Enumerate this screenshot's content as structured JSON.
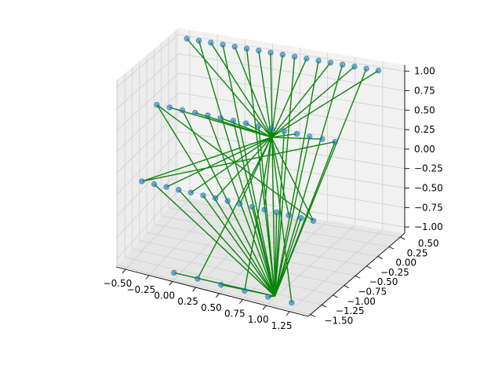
{
  "chart_data": {
    "type": "scatter3d",
    "title": "",
    "xlabel": "",
    "ylabel": "",
    "zlabel": "",
    "xlim": [
      -0.6,
      1.45
    ],
    "ylim": [
      -1.55,
      0.6
    ],
    "zlim": [
      -1.08,
      1.08
    ],
    "grid": true,
    "x_ticks": [
      "−0.50",
      "−0.25",
      "0.00",
      "0.25",
      "0.50",
      "0.75",
      "1.00",
      "1.25"
    ],
    "y_ticks": [
      "−1.50",
      "−1.25",
      "−1.00",
      "−0.75",
      "−0.50",
      "−0.25",
      "0.00",
      "0.25",
      "0.50"
    ],
    "z_ticks": [
      "−1.00",
      "−0.75",
      "−0.50",
      "−0.25",
      "0.00",
      "0.25",
      "0.50",
      "0.75",
      "1.00"
    ],
    "x_tick_values": [
      -0.5,
      -0.25,
      0,
      0.25,
      0.5,
      0.75,
      1.0,
      1.25
    ],
    "y_tick_values": [
      -1.5,
      -1.25,
      -1.0,
      -0.75,
      -0.5,
      -0.25,
      0,
      0.25,
      0.5
    ],
    "z_tick_values": [
      -1.0,
      -0.75,
      -0.5,
      -0.25,
      0,
      0.25,
      0.5,
      0.75,
      1.0
    ],
    "series": [
      {
        "marker": "circle",
        "color": "#1f77b4",
        "points_description": "rows of points across the plot range",
        "rows": [
          {
            "x_start": -0.5,
            "x_end": 1.25,
            "y": 0.5,
            "z": 1.0,
            "count": 17
          },
          {
            "x_start": -0.5,
            "x_end": 1.25,
            "y": -0.5,
            "z": 0.5,
            "count": 15
          },
          {
            "x_start": -0.5,
            "x_end": 1.25,
            "y": -1.0,
            "z": -0.25,
            "count": 15
          },
          {
            "x_start": 0.0,
            "x_end": 1.25,
            "y": -1.5,
            "z": -1.0,
            "count": 6
          }
        ]
      },
      {
        "type": "line",
        "color": "#008000",
        "hub_a": {
          "x": 0.55,
          "y": -0.3,
          "z": 0.3
        },
        "hub_b": {
          "x": 1.05,
          "y": -1.45,
          "z": -1.0
        }
      }
    ]
  }
}
